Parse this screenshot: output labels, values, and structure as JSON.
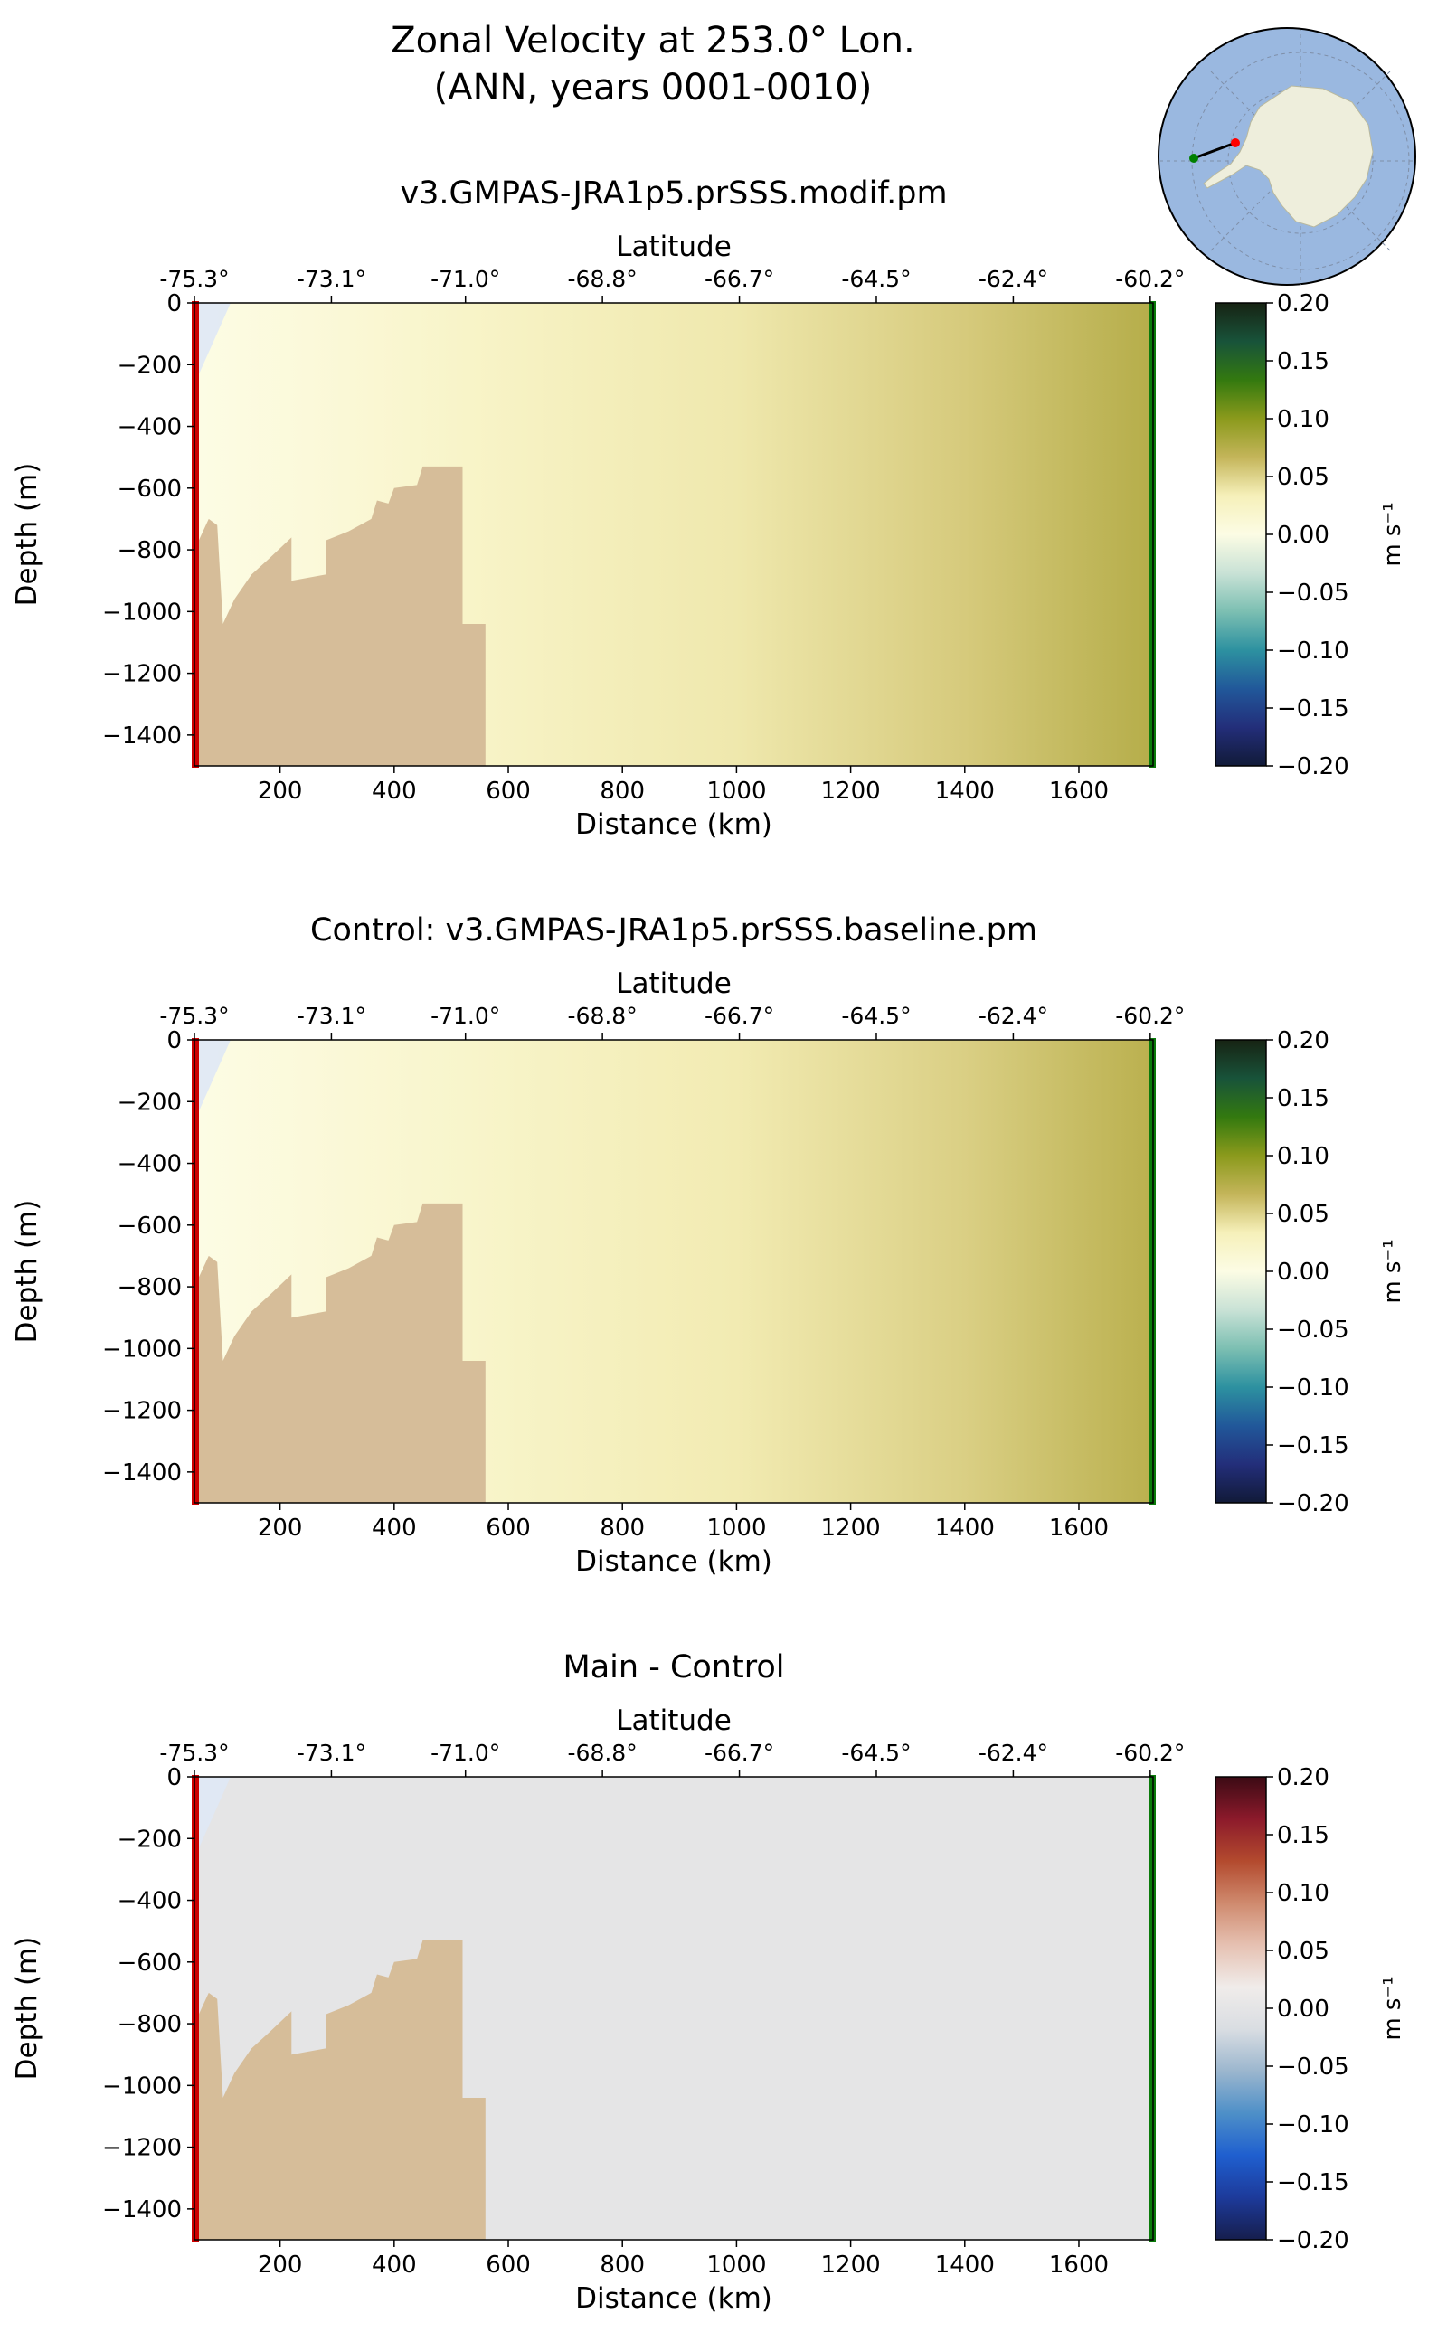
{
  "figure": {
    "title_line1": "Zonal Velocity at 253.0° Lon.",
    "title_line2": "(ANN, years 0001-0010)"
  },
  "inset_map": {
    "projection": "south-polar-stereographic",
    "ocean_color": "#9ab8e0",
    "land_color": "#eeeedc",
    "transect": {
      "start_color": "#ff0000",
      "end_color": "#008000",
      "line_color": "#000000"
    }
  },
  "chart_data": [
    {
      "type": "heatmap",
      "title": "v3.GMPAS-JRA1p5.prSSS.modif.pm",
      "xlabel": "Distance (km)",
      "ylabel": "Depth (m)",
      "top_axis_label": "Latitude",
      "xlim": [
        50,
        1730
      ],
      "ylim": [
        -1500,
        0
      ],
      "x_ticks": [
        200,
        400,
        600,
        800,
        1000,
        1200,
        1400,
        1600
      ],
      "x_tick_labels": [
        "200",
        "400",
        "600",
        "800",
        "1000",
        "1200",
        "1400",
        "1600"
      ],
      "y_ticks": [
        0,
        -200,
        -400,
        -600,
        -800,
        -1000,
        -1200,
        -1400
      ],
      "y_tick_labels": [
        "0",
        "−200",
        "−400",
        "−600",
        "−800",
        "−1000",
        "−1200",
        "−1400"
      ],
      "lat_tick_km": [
        50,
        290,
        525,
        765,
        1005,
        1245,
        1485,
        1725
      ],
      "lat_tick_labels": [
        "-75.3°",
        "-73.1°",
        "-71.0°",
        "-68.8°",
        "-66.7°",
        "-64.5°",
        "-62.4°",
        "-60.2°"
      ],
      "colorbar": {
        "label": "m s⁻¹",
        "range": [
          -0.2,
          0.2
        ],
        "ticks": [
          "0.20",
          "0.15",
          "0.10",
          "0.05",
          "0.00",
          "−0.05",
          "−0.10",
          "−0.15",
          "−0.20"
        ],
        "colormap": "delta",
        "stops": [
          "#172313",
          "#18533a",
          "#33790f",
          "#8b9a1c",
          "#c4b55a",
          "#f6f0ba",
          "#fcfce4",
          "#c9e2d6",
          "#7cbfb2",
          "#2d91a0",
          "#21589a",
          "#232e7a",
          "#111a38"
        ]
      },
      "velocity_field_m_s": [
        {
          "km": 60,
          "v": 0.0
        },
        {
          "km": 250,
          "v": 0.008
        },
        {
          "km": 530,
          "v": 0.022
        },
        {
          "km": 1000,
          "v": 0.038
        },
        {
          "km": 1400,
          "v": 0.055
        },
        {
          "km": 1720,
          "v": 0.075
        }
      ],
      "bathymetry_km_depth": [
        [
          50,
          -1500
        ],
        [
          50,
          -800
        ],
        [
          75,
          -700
        ],
        [
          90,
          -720
        ],
        [
          100,
          -1040
        ],
        [
          120,
          -960
        ],
        [
          150,
          -880
        ],
        [
          180,
          -830
        ],
        [
          220,
          -760
        ],
        [
          220,
          -900
        ],
        [
          280,
          -880
        ],
        [
          280,
          -770
        ],
        [
          320,
          -740
        ],
        [
          360,
          -700
        ],
        [
          370,
          -640
        ],
        [
          390,
          -650
        ],
        [
          400,
          -600
        ],
        [
          440,
          -590
        ],
        [
          450,
          -530
        ],
        [
          520,
          -530
        ],
        [
          520,
          -1040
        ],
        [
          560,
          -1040
        ],
        [
          560,
          -1500
        ]
      ],
      "bathymetry_color": "#d6bd99",
      "start_marker_color": "#cc0000",
      "end_marker_color": "#0a7a0a"
    },
    {
      "type": "heatmap",
      "title": "Control: v3.GMPAS-JRA1p5.prSSS.baseline.pm",
      "xlabel": "Distance (km)",
      "ylabel": "Depth (m)",
      "top_axis_label": "Latitude",
      "xlim": [
        50,
        1730
      ],
      "ylim": [
        -1500,
        0
      ],
      "x_ticks": [
        200,
        400,
        600,
        800,
        1000,
        1200,
        1400,
        1600
      ],
      "x_tick_labels": [
        "200",
        "400",
        "600",
        "800",
        "1000",
        "1200",
        "1400",
        "1600"
      ],
      "y_ticks": [
        0,
        -200,
        -400,
        -600,
        -800,
        -1000,
        -1200,
        -1400
      ],
      "y_tick_labels": [
        "0",
        "−200",
        "−400",
        "−600",
        "−800",
        "−1000",
        "−1200",
        "−1400"
      ],
      "lat_tick_km": [
        50,
        290,
        525,
        765,
        1005,
        1245,
        1485,
        1725
      ],
      "lat_tick_labels": [
        "-75.3°",
        "-73.1°",
        "-71.0°",
        "-68.8°",
        "-66.7°",
        "-64.5°",
        "-62.4°",
        "-60.2°"
      ],
      "colorbar": {
        "label": "m s⁻¹",
        "range": [
          -0.2,
          0.2
        ],
        "ticks": [
          "0.20",
          "0.15",
          "0.10",
          "0.05",
          "0.00",
          "−0.05",
          "−0.10",
          "−0.15",
          "−0.20"
        ],
        "colormap": "delta",
        "stops": [
          "#172313",
          "#18533a",
          "#33790f",
          "#8b9a1c",
          "#c4b55a",
          "#f6f0ba",
          "#fcfce4",
          "#c9e2d6",
          "#7cbfb2",
          "#2d91a0",
          "#21589a",
          "#232e7a",
          "#111a38"
        ]
      },
      "velocity_field_m_s": [
        {
          "km": 60,
          "v": 0.0
        },
        {
          "km": 250,
          "v": 0.008
        },
        {
          "km": 530,
          "v": 0.02
        },
        {
          "km": 1000,
          "v": 0.036
        },
        {
          "km": 1400,
          "v": 0.052
        },
        {
          "km": 1720,
          "v": 0.072
        }
      ],
      "bathymetry_km_depth": [
        [
          50,
          -1500
        ],
        [
          50,
          -800
        ],
        [
          75,
          -700
        ],
        [
          90,
          -720
        ],
        [
          100,
          -1040
        ],
        [
          120,
          -960
        ],
        [
          150,
          -880
        ],
        [
          180,
          -830
        ],
        [
          220,
          -760
        ],
        [
          220,
          -900
        ],
        [
          280,
          -880
        ],
        [
          280,
          -770
        ],
        [
          320,
          -740
        ],
        [
          360,
          -700
        ],
        [
          370,
          -640
        ],
        [
          390,
          -650
        ],
        [
          400,
          -600
        ],
        [
          440,
          -590
        ],
        [
          450,
          -530
        ],
        [
          520,
          -530
        ],
        [
          520,
          -1040
        ],
        [
          560,
          -1040
        ],
        [
          560,
          -1500
        ]
      ],
      "bathymetry_color": "#d6bd99",
      "start_marker_color": "#cc0000",
      "end_marker_color": "#0a7a0a"
    },
    {
      "type": "heatmap",
      "title": "Main - Control",
      "xlabel": "Distance (km)",
      "ylabel": "Depth (m)",
      "top_axis_label": "Latitude",
      "xlim": [
        50,
        1730
      ],
      "ylim": [
        -1500,
        0
      ],
      "x_ticks": [
        200,
        400,
        600,
        800,
        1000,
        1200,
        1400,
        1600
      ],
      "x_tick_labels": [
        "200",
        "400",
        "600",
        "800",
        "1000",
        "1200",
        "1400",
        "1600"
      ],
      "y_ticks": [
        0,
        -200,
        -400,
        -600,
        -800,
        -1000,
        -1200,
        -1400
      ],
      "y_tick_labels": [
        "0",
        "−200",
        "−400",
        "−600",
        "−800",
        "−1000",
        "−1200",
        "−1400"
      ],
      "lat_tick_km": [
        50,
        290,
        525,
        765,
        1005,
        1245,
        1485,
        1725
      ],
      "lat_tick_labels": [
        "-75.3°",
        "-73.1°",
        "-71.0°",
        "-68.8°",
        "-66.7°",
        "-64.5°",
        "-62.4°",
        "-60.2°"
      ],
      "colorbar": {
        "label": "m s⁻¹",
        "range": [
          -0.2,
          0.2
        ],
        "ticks": [
          "0.20",
          "0.15",
          "0.10",
          "0.05",
          "0.00",
          "−0.05",
          "−0.10",
          "−0.15",
          "−0.20"
        ],
        "colormap": "balance",
        "stops": [
          "#3b0a14",
          "#8c1a2b",
          "#b34a2e",
          "#cf8a6e",
          "#e6c1b2",
          "#f0ecea",
          "#d9dde2",
          "#9bb6ce",
          "#4d8fc8",
          "#1f5fcf",
          "#1d3a9a",
          "#161e4d"
        ]
      },
      "velocity_field_m_s": [
        {
          "km": 60,
          "v": 0.0
        },
        {
          "km": 1720,
          "v": 0.001
        }
      ],
      "bathymetry_km_depth": [
        [
          50,
          -1500
        ],
        [
          50,
          -800
        ],
        [
          75,
          -700
        ],
        [
          90,
          -720
        ],
        [
          100,
          -1040
        ],
        [
          120,
          -960
        ],
        [
          150,
          -880
        ],
        [
          180,
          -830
        ],
        [
          220,
          -760
        ],
        [
          220,
          -900
        ],
        [
          280,
          -880
        ],
        [
          280,
          -770
        ],
        [
          320,
          -740
        ],
        [
          360,
          -700
        ],
        [
          370,
          -640
        ],
        [
          390,
          -650
        ],
        [
          400,
          -600
        ],
        [
          440,
          -590
        ],
        [
          450,
          -530
        ],
        [
          520,
          -530
        ],
        [
          520,
          -1040
        ],
        [
          560,
          -1040
        ],
        [
          560,
          -1500
        ]
      ],
      "bathymetry_color": "#d6bd99",
      "start_marker_color": "#cc0000",
      "end_marker_color": "#0a7a0a"
    }
  ]
}
